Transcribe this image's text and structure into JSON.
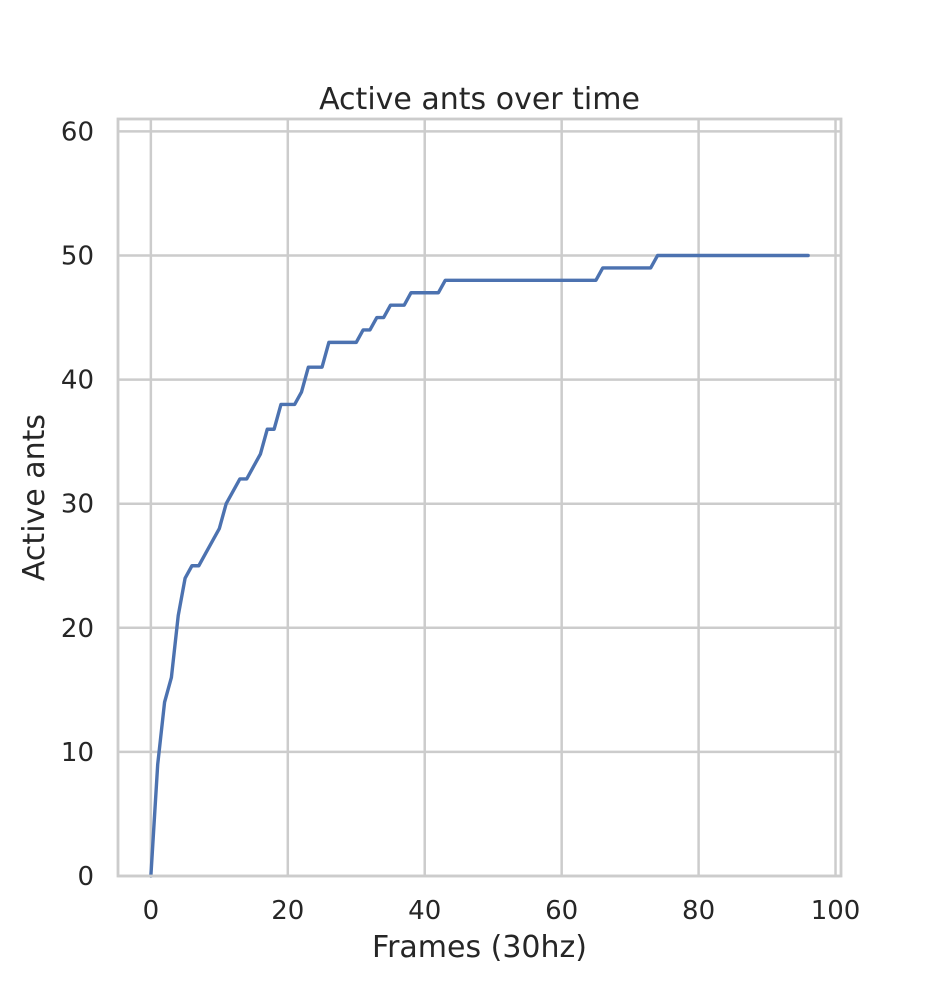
{
  "chart_data": {
    "type": "line",
    "title": "Active ants over time",
    "xlabel": "Frames (30hz)",
    "ylabel": "Active ants",
    "xlim": [
      -4.8,
      100.8
    ],
    "ylim": [
      0,
      61
    ],
    "xticks": [
      0,
      20,
      40,
      60,
      80,
      100
    ],
    "yticks": [
      0,
      10,
      20,
      30,
      40,
      50,
      60
    ],
    "grid": true,
    "series": [
      {
        "color": "#4c72b0",
        "x": [
          0,
          1,
          2,
          3,
          4,
          5,
          6,
          7,
          8,
          9,
          10,
          11,
          12,
          13,
          14,
          15,
          16,
          17,
          18,
          19,
          20,
          21,
          22,
          23,
          24,
          25,
          26,
          27,
          28,
          29,
          30,
          31,
          32,
          33,
          34,
          35,
          36,
          37,
          38,
          39,
          40,
          41,
          42,
          43,
          44,
          45,
          46,
          47,
          48,
          49,
          50,
          51,
          52,
          53,
          54,
          55,
          56,
          57,
          58,
          59,
          60,
          61,
          62,
          63,
          64,
          65,
          66,
          67,
          68,
          69,
          70,
          71,
          72,
          73,
          74,
          75,
          76,
          77,
          78,
          79,
          80,
          81,
          82,
          83,
          84,
          85,
          86,
          87,
          88,
          89,
          90,
          91,
          92,
          93,
          94,
          95,
          96
        ],
        "y": [
          0,
          9,
          14,
          16,
          21,
          24,
          25,
          25,
          26,
          27,
          28,
          30,
          31,
          32,
          32,
          33,
          34,
          36,
          36,
          38,
          38,
          38,
          39,
          41,
          41,
          41,
          43,
          43,
          43,
          43,
          43,
          44,
          44,
          45,
          45,
          46,
          46,
          46,
          47,
          47,
          47,
          47,
          47,
          48,
          48,
          48,
          48,
          48,
          48,
          48,
          48,
          48,
          48,
          48,
          48,
          48,
          48,
          48,
          48,
          48,
          48,
          48,
          48,
          48,
          48,
          48,
          49,
          49,
          49,
          49,
          49,
          49,
          49,
          49,
          50,
          50,
          50,
          50,
          50,
          50,
          50,
          50,
          50,
          50,
          50,
          50,
          50,
          50,
          50,
          50,
          50,
          50,
          50,
          50,
          50,
          50,
          50
        ]
      }
    ]
  }
}
